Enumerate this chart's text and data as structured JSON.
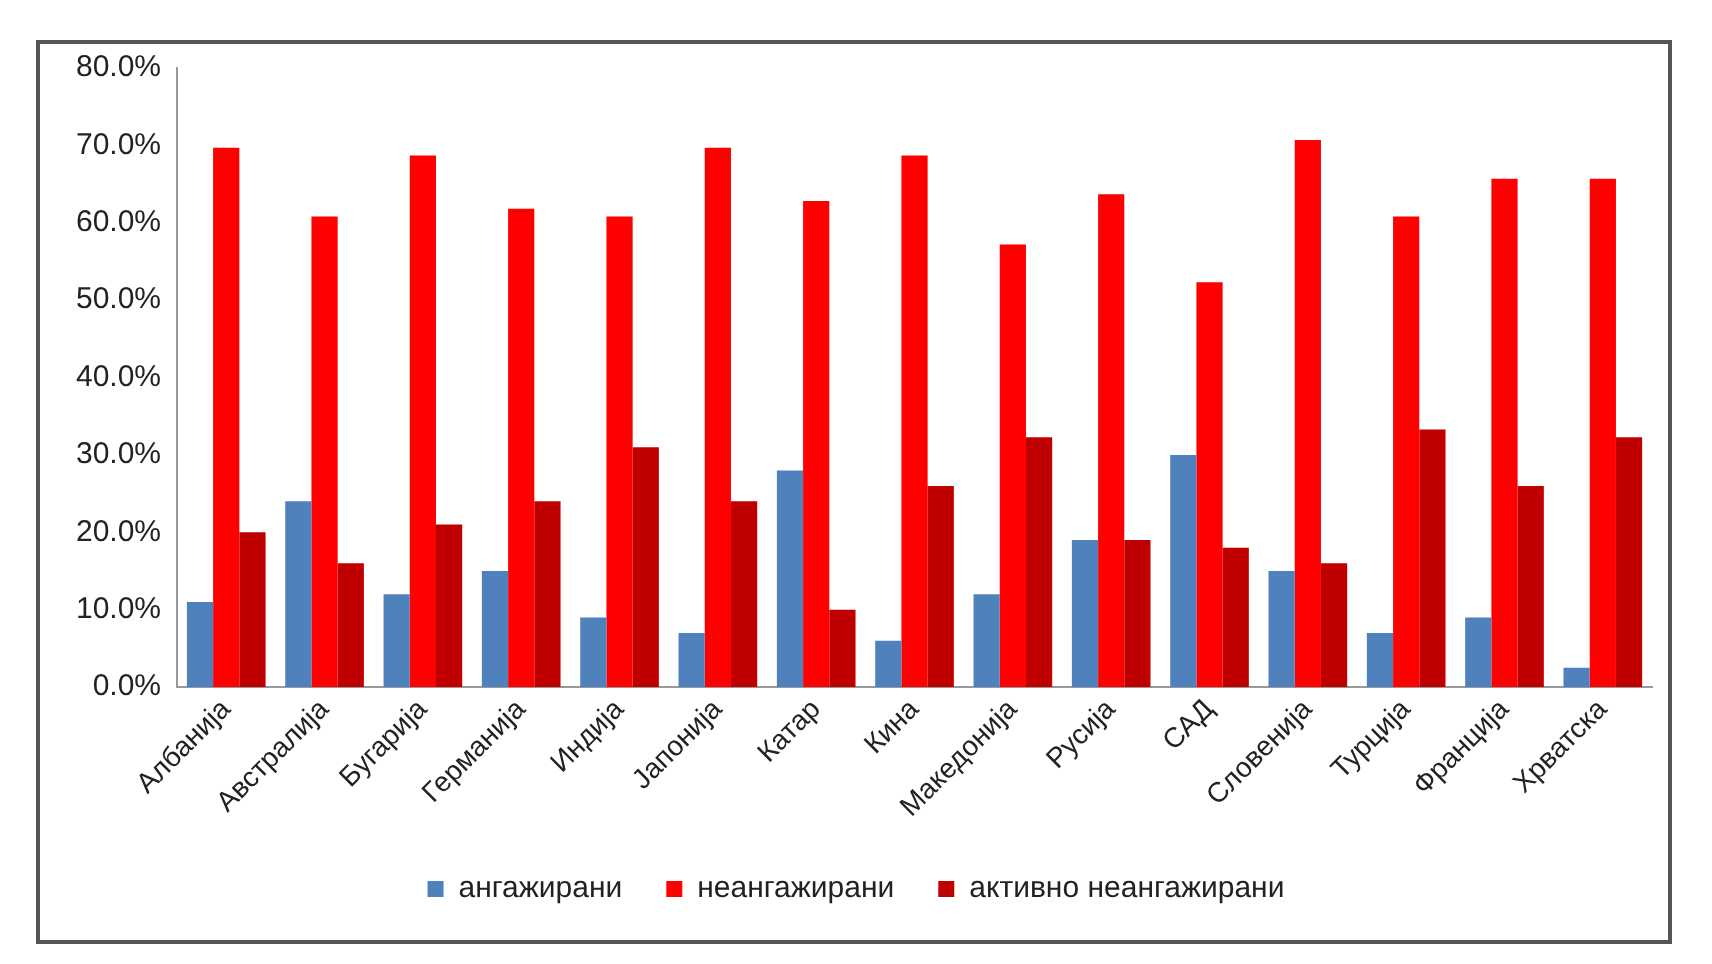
{
  "chart_data": {
    "type": "bar",
    "categories": [
      "Албанија",
      "Австралија",
      "Бугарија",
      "Германија",
      "Индија",
      "Јапонија",
      "Катар",
      "Кина",
      "Македонија",
      "Русија",
      "САД",
      "Словенија",
      "Турција",
      "Франција",
      "Хрватска"
    ],
    "series": [
      {
        "name": "ангажирани",
        "color": "#4f81bd",
        "values": [
          11,
          24,
          12,
          15,
          9,
          7,
          28,
          6,
          12,
          19,
          30,
          15,
          7,
          9,
          2.5
        ]
      },
      {
        "name": "неангажирани",
        "color": "#ff0000",
        "values": [
          69.7,
          60.8,
          68.7,
          61.8,
          60.8,
          69.7,
          62.8,
          68.7,
          57.2,
          63.7,
          52.3,
          70.7,
          60.8,
          65.7,
          65.7
        ]
      },
      {
        "name": "активно неангажирани",
        "color": "#c00000",
        "values": [
          20,
          16,
          21,
          24,
          31,
          24,
          10,
          26,
          32.3,
          19,
          18,
          16,
          33.3,
          26,
          32.3
        ]
      }
    ],
    "ylim": [
      0,
      80
    ],
    "yticks": [
      {
        "value": 0,
        "label": "0.0%"
      },
      {
        "value": 10,
        "label": "10.0%"
      },
      {
        "value": 20,
        "label": "20.0%"
      },
      {
        "value": 30,
        "label": "30.0%"
      },
      {
        "value": 40,
        "label": "40.0%"
      },
      {
        "value": 50,
        "label": "50.0%"
      },
      {
        "value": 60,
        "label": "60.0%"
      },
      {
        "value": 70,
        "label": "70.0%"
      },
      {
        "value": 80,
        "label": "80.0%"
      }
    ],
    "grid": false,
    "legend": "bottom"
  }
}
